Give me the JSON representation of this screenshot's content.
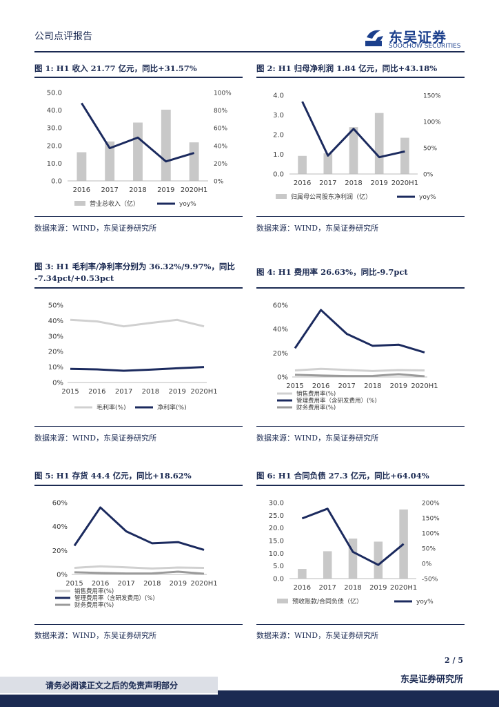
{
  "header": {
    "section_label": "公司点评报告",
    "logo_cn": "东吴证券",
    "logo_en": "SOOCHOW SECURITIES",
    "logo_mark": "SCS"
  },
  "figures": [
    {
      "title": "图 1:  H1 收入 21.77 亿元，同比+31.57%",
      "source": "数据来源：WIND，东吴证券研究所"
    },
    {
      "title": "图 2:  H1 归母净利润 1.84 亿元，同比+43.18%",
      "source": "数据来源：WIND，东吴证券研究所"
    },
    {
      "title_line1": "图 3:  H1 毛利率/净利率分别为 36.32%/9.97%，同比",
      "title_line2": "-7.34pct/+0.53pct",
      "source": "数据来源：WIND，东吴证券研究所"
    },
    {
      "title": "图 4:  H1 费用率 26.63%，同比-9.7pct",
      "source": "数据来源：WIND，东吴证券研究所"
    },
    {
      "title": "图 5:  H1 存货 44.4 亿元，同比+18.62%",
      "source": "数据来源：WIND，东吴证券研究所"
    },
    {
      "title": "图 6:  H1 合同负债 27.3 亿元，同比+64.04%",
      "source": "数据来源：WIND，东吴证券研究所"
    }
  ],
  "footer": {
    "page": "2 / 5",
    "disclaimer": "请务必阅读正文之后的免责声明部分",
    "firm": "东吴证券研究所"
  },
  "colors": {
    "bar": "#c8c8c8",
    "line": "#1b2a5e",
    "light": "#d0d0d0",
    "gray": "#9a9a9a"
  },
  "chart_data": [
    {
      "type": "bar+line",
      "categories": [
        "2016",
        "2017",
        "2018",
        "2019",
        "2020H1"
      ],
      "series": [
        {
          "name": "营业总收入（亿）",
          "kind": "bar",
          "axis": "left",
          "values": [
            16.2,
            22.3,
            33.0,
            40.3,
            21.8
          ]
        },
        {
          "name": "yoy%",
          "kind": "line",
          "axis": "right",
          "values": [
            88,
            37,
            49,
            22,
            31.6
          ]
        }
      ],
      "ylim_left": [
        0,
        50
      ],
      "ylim_right": [
        0,
        100
      ],
      "left_ticks": [
        "0.0",
        "10.0",
        "20.0",
        "30.0",
        "40.0",
        "50.0"
      ],
      "right_ticks": [
        "0%",
        "20%",
        "40%",
        "60%",
        "80%",
        "100%"
      ]
    },
    {
      "type": "bar+line",
      "categories": [
        "2016",
        "2017",
        "2018",
        "2019",
        "2020H1"
      ],
      "series": [
        {
          "name": "归属母公司股东净利润（亿）",
          "kind": "bar",
          "axis": "left",
          "values": [
            0.92,
            1.05,
            2.38,
            3.1,
            1.84
          ]
        },
        {
          "name": "yoy%",
          "kind": "line",
          "axis": "right",
          "values": [
            138,
            35,
            86,
            32,
            43
          ]
        }
      ],
      "ylim_left": [
        0,
        4
      ],
      "ylim_right": [
        0,
        150
      ],
      "left_ticks": [
        "0.0",
        "1.0",
        "2.0",
        "3.0",
        "4.0"
      ],
      "right_ticks": [
        "0%",
        "50%",
        "100%",
        "150%"
      ]
    },
    {
      "type": "line",
      "categories": [
        "2015",
        "2016",
        "2017",
        "2018",
        "2019",
        "2020H1"
      ],
      "series": [
        {
          "name": "毛利率(%)",
          "values": [
            40.5,
            39.5,
            36.3,
            38.5,
            40.5,
            36.3
          ]
        },
        {
          "name": "净利率(%)",
          "values": [
            8.8,
            8.5,
            7.6,
            8.3,
            9.2,
            10.0
          ]
        }
      ],
      "ylim": [
        0,
        50
      ],
      "ticks": [
        "0%",
        "10%",
        "20%",
        "30%",
        "40%",
        "50%"
      ]
    },
    {
      "type": "line",
      "categories": [
        "2015",
        "2016",
        "2017",
        "2018",
        "2019",
        "2020H1"
      ],
      "series": [
        {
          "name": "销售费用率(%)",
          "values": [
            5.5,
            6.8,
            5.9,
            5.0,
            5.8,
            5.5
          ]
        },
        {
          "name": "管理费用率（含研发费用）(%)",
          "values": [
            24,
            56,
            36,
            26,
            27,
            20.5
          ]
        },
        {
          "name": "财务费用率(%)",
          "values": [
            1.8,
            1.2,
            0.8,
            0.9,
            2.3,
            0.6
          ]
        }
      ],
      "ylim": [
        0,
        60
      ],
      "ticks": [
        "0%",
        "20%",
        "40%",
        "60%"
      ]
    },
    {
      "type": "line",
      "categories": [
        "2015",
        "2016",
        "2017",
        "2018",
        "2019",
        "2020H1"
      ],
      "series": [
        {
          "name": "销售费用率(%)",
          "values": [
            5.5,
            6.8,
            5.9,
            5.0,
            5.8,
            5.5
          ]
        },
        {
          "name": "管理费用率（含研发费用）(%)",
          "values": [
            24,
            56,
            36,
            26,
            27,
            20.5
          ]
        },
        {
          "name": "财务费用率(%)",
          "values": [
            1.8,
            1.2,
            0.8,
            0.9,
            2.3,
            0.6
          ]
        }
      ],
      "ylim": [
        0,
        60
      ],
      "ticks": [
        "0%",
        "20%",
        "40%",
        "60%"
      ]
    },
    {
      "type": "bar+line",
      "categories": [
        "2016",
        "2017",
        "2018",
        "2019",
        "2020H1"
      ],
      "series": [
        {
          "name": "预收账款/合同负债（亿）",
          "kind": "bar",
          "axis": "left",
          "values": [
            3.8,
            10.8,
            15.8,
            14.6,
            27.3
          ]
        },
        {
          "name": "yoy%",
          "kind": "line",
          "axis": "right",
          "values": [
            148,
            180,
            38,
            -5,
            64
          ]
        }
      ],
      "ylim_left": [
        0,
        30
      ],
      "ylim_right": [
        -50,
        200
      ],
      "left_ticks": [
        "0.0",
        "5.0",
        "10.0",
        "15.0",
        "20.0",
        "25.0",
        "30.0"
      ],
      "right_ticks": [
        "-50%",
        "0%",
        "50%",
        "100%",
        "150%",
        "200%"
      ]
    }
  ]
}
